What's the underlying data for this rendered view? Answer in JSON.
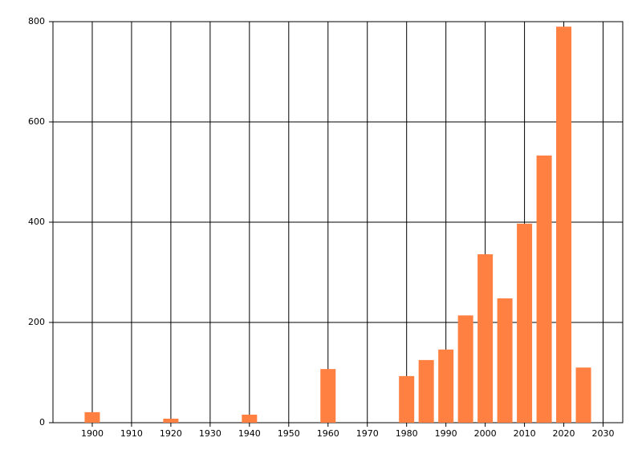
{
  "chart_data": {
    "type": "bar",
    "x": [
      1900,
      1920,
      1940,
      1960,
      1980,
      1985,
      1990,
      1995,
      2000,
      2005,
      2010,
      2015,
      2020,
      2025
    ],
    "values": [
      21,
      8,
      16,
      107,
      93,
      125,
      146,
      214,
      336,
      248,
      397,
      533,
      790,
      110
    ],
    "color": "#ff8040",
    "xlim": [
      1890,
      2035
    ],
    "xticks": [
      1900,
      1910,
      1920,
      1930,
      1940,
      1950,
      1960,
      1970,
      1980,
      1990,
      2000,
      2010,
      2020,
      2030
    ],
    "ylim": [
      0,
      800
    ],
    "yticks": [
      0,
      200,
      400,
      600,
      800
    ],
    "grid": true
  }
}
